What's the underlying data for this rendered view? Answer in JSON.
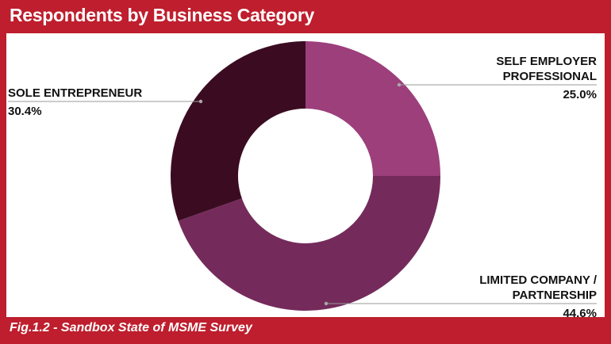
{
  "chart_data": {
    "type": "donut",
    "title": "Respondents by Business Category",
    "caption": "Fig.1.2 - Sandbox State of MSME Survey",
    "categories": [
      "SELF EMPLOYER PROFESSIONAL",
      "LIMITED COMPANY / PARTNERSHIP",
      "SOLE ENTREPRENEUR"
    ],
    "values": [
      25.0,
      44.6,
      30.4
    ],
    "value_labels": [
      "25.0%",
      "44.6%",
      "30.4%"
    ],
    "colors": [
      "#9c3f7b",
      "#742b5b",
      "#3b0c21"
    ]
  }
}
